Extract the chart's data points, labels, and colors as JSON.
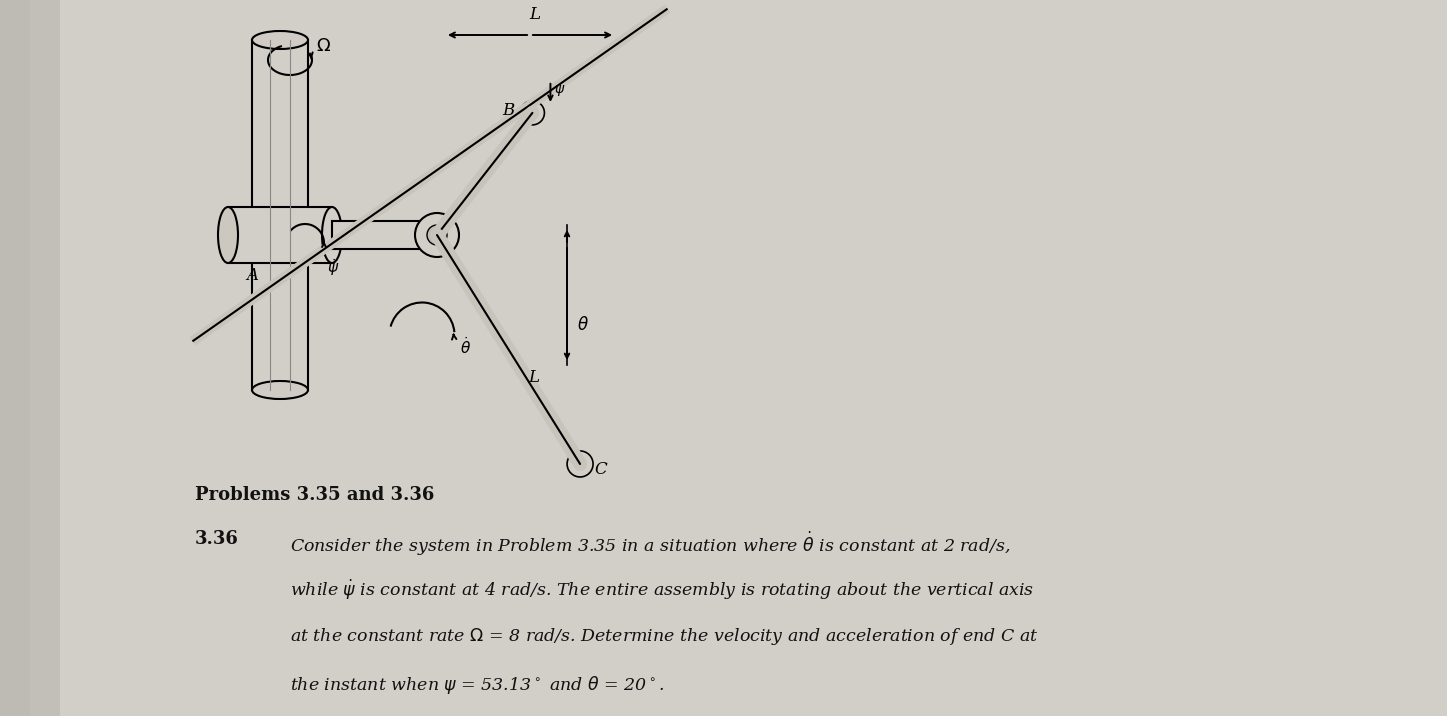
{
  "fig_width": 14.47,
  "fig_height": 7.16,
  "bg_color": "#c9c5be",
  "page_color": "#d2cec8",
  "problems_label": "Problems 3.35 and 3.36",
  "problem_number": "3.36",
  "line1": "Consider the system in Problem 3.35 in a situation where $\\dot{\\theta}$ is constant at 2 rad/s,",
  "line2": "while $\\dot{\\psi}$ is constant at 4 rad/s. The entire assembly is rotating about the vertical axis",
  "line3": "at the constant rate $\\Omega$ = 8 rad/s. Determine the velocity and acceleration of end C at",
  "line4": "the instant when $\\psi$ = 53.13° and $\\theta$ = 20°.",
  "text_color": "#111111"
}
